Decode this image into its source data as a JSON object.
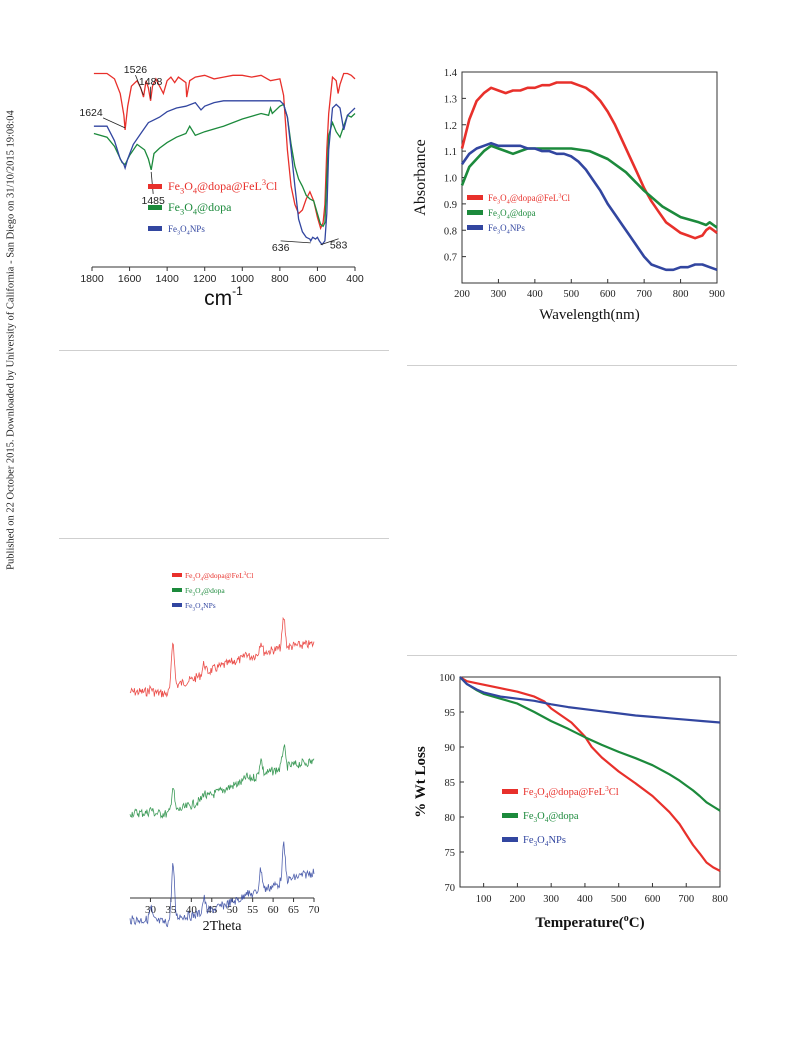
{
  "sidebar_text": "Published on 22 October 2015. Downloaded by University of California - San Diego on 31/10/2015 19:08:04",
  "legend_labels": {
    "fe3o4_dopa_fel3cl": [
      "Fe",
      "3",
      "O",
      "4",
      "@dopa@FeL",
      "3",
      "Cl"
    ],
    "fe3o4_dopa": [
      "Fe",
      "3",
      "O",
      "4",
      "@dopa"
    ],
    "fe3o4_nps": [
      "Fe",
      "3",
      "O",
      "4",
      "NPs"
    ]
  },
  "colors": {
    "red": "#e8302b",
    "green": "#1c8a3c",
    "blue": "#3246a0"
  },
  "chart_data": [
    {
      "id": "ftir",
      "type": "line",
      "xlabel": "cm-1",
      "xlabel_parts": [
        "cm",
        "-1"
      ],
      "xlim": [
        1800,
        400
      ],
      "x_reversed": true,
      "x_ticks": [
        1800,
        1600,
        1400,
        1200,
        1000,
        800,
        600,
        400
      ],
      "y_ticks": false,
      "legend_position": "center-left",
      "annotations": [
        {
          "text": "1624",
          "x": 1624,
          "series": "Fe3O4@dopa@FeL3Cl"
        },
        {
          "text": "1526",
          "x": 1526,
          "series": "Fe3O4@dopa@FeL3Cl"
        },
        {
          "text": "1488",
          "x": 1488,
          "series": "Fe3O4@dopa@FeL3Cl"
        },
        {
          "text": "1485",
          "x": 1485,
          "series": "Fe3O4@dopa"
        },
        {
          "text": "636",
          "x": 636,
          "series": "Fe3O4NPs"
        },
        {
          "text": "583",
          "x": 583,
          "series": "Fe3O4NPs"
        }
      ],
      "series": [
        {
          "name": "Fe3O4@dopa@FeL3Cl",
          "color": "#e8302b",
          "x": [
            1790,
            1720,
            1680,
            1650,
            1630,
            1624,
            1610,
            1590,
            1560,
            1540,
            1526,
            1512,
            1500,
            1488,
            1478,
            1460,
            1440,
            1420,
            1400,
            1380,
            1360,
            1340,
            1300,
            1296,
            1280,
            1250,
            1200,
            1150,
            1100,
            1050,
            1000,
            950,
            900,
            850,
            800,
            780,
            760,
            740,
            720,
            700,
            680,
            660,
            640,
            620,
            600,
            583,
            570,
            560,
            550,
            540,
            520,
            500,
            490,
            480,
            460,
            440,
            420,
            400
          ],
          "y": [
            97,
            97,
            94,
            86,
            74,
            66,
            79,
            90,
            93,
            89,
            84,
            93,
            89,
            82,
            90,
            94,
            90,
            86,
            93,
            95,
            92,
            95,
            92,
            84,
            93,
            95,
            96,
            94,
            95,
            96,
            96,
            95,
            96,
            93,
            94,
            85,
            55,
            35,
            25,
            20,
            22,
            28,
            32,
            27,
            18,
            12,
            15,
            25,
            55,
            75,
            95,
            93,
            86,
            91,
            97,
            97,
            96,
            94
          ]
        },
        {
          "name": "Fe3O4@dopa",
          "color": "#1c8a3c",
          "x": [
            1790,
            1720,
            1680,
            1640,
            1624,
            1600,
            1560,
            1520,
            1500,
            1485,
            1470,
            1440,
            1400,
            1350,
            1300,
            1280,
            1250,
            1200,
            1100,
            1000,
            900,
            860,
            850,
            840,
            800,
            780,
            760,
            740,
            720,
            700,
            680,
            660,
            640,
            620,
            600,
            583,
            570,
            560,
            550,
            540,
            520,
            500,
            480,
            460,
            440,
            420,
            400
          ],
          "y": [
            64,
            62,
            57,
            48,
            47,
            52,
            58,
            55,
            50,
            44,
            53,
            56,
            59,
            62,
            64,
            68,
            63,
            65,
            68,
            72,
            75,
            74,
            78,
            75,
            79,
            80,
            73,
            58,
            46,
            39,
            35,
            30,
            28,
            27,
            20,
            14,
            13,
            15,
            40,
            63,
            70,
            65,
            62,
            68,
            74,
            73,
            75
          ]
        },
        {
          "name": "Fe3O4NPs",
          "color": "#3246a0",
          "x": [
            1790,
            1720,
            1680,
            1650,
            1630,
            1624,
            1610,
            1580,
            1540,
            1500,
            1480,
            1440,
            1400,
            1350,
            1300,
            1250,
            1220,
            1200,
            1150,
            1100,
            1050,
            1000,
            900,
            800,
            780,
            760,
            740,
            720,
            700,
            680,
            660,
            640,
            636,
            625,
            610,
            600,
            590,
            583,
            575,
            560,
            550,
            540,
            520,
            500,
            480,
            460,
            440,
            420,
            400
          ],
          "y": [
            68,
            68,
            60,
            50,
            47,
            45,
            50,
            58,
            64,
            70,
            71,
            73,
            76,
            78,
            79,
            81,
            77,
            79,
            81,
            82,
            82,
            82,
            82,
            82,
            80,
            73,
            55,
            35,
            17,
            10,
            7,
            6,
            5,
            7,
            6,
            7,
            5,
            4,
            3,
            5,
            20,
            55,
            78,
            80,
            78,
            66,
            74,
            76,
            78
          ]
        }
      ]
    },
    {
      "id": "uvvis",
      "type": "line",
      "xlabel": "Wavelength(nm)",
      "ylabel": "Absorbance",
      "xlim": [
        200,
        900
      ],
      "ylim": [
        0.6,
        1.4
      ],
      "x_ticks": [
        200,
        300,
        400,
        500,
        600,
        700,
        800,
        900
      ],
      "y_ticks": [
        0.7,
        0.8,
        0.9,
        1.0,
        1.1,
        1.2,
        1.3,
        1.4
      ],
      "legend_position": "center-left",
      "series": [
        {
          "name": "Fe3O4@dopa@FeL3Cl",
          "color": "#e8302b",
          "x": [
            200,
            220,
            240,
            260,
            280,
            300,
            320,
            340,
            360,
            380,
            400,
            420,
            440,
            460,
            480,
            500,
            520,
            540,
            560,
            580,
            600,
            620,
            640,
            660,
            680,
            700,
            720,
            740,
            760,
            780,
            800,
            820,
            840,
            860,
            870,
            880,
            890,
            900
          ],
          "y": [
            1.11,
            1.22,
            1.29,
            1.32,
            1.34,
            1.33,
            1.32,
            1.33,
            1.33,
            1.34,
            1.34,
            1.35,
            1.35,
            1.36,
            1.36,
            1.36,
            1.35,
            1.34,
            1.32,
            1.29,
            1.25,
            1.2,
            1.14,
            1.08,
            1.02,
            0.96,
            0.91,
            0.87,
            0.83,
            0.81,
            0.79,
            0.78,
            0.77,
            0.78,
            0.8,
            0.81,
            0.8,
            0.79
          ]
        },
        {
          "name": "Fe3O4@dopa",
          "color": "#1c8a3c",
          "x": [
            200,
            220,
            240,
            260,
            280,
            300,
            320,
            340,
            360,
            380,
            400,
            450,
            500,
            550,
            600,
            650,
            700,
            750,
            800,
            850,
            870,
            880,
            890,
            900
          ],
          "y": [
            0.97,
            1.04,
            1.07,
            1.1,
            1.12,
            1.11,
            1.1,
            1.09,
            1.1,
            1.11,
            1.11,
            1.11,
            1.11,
            1.1,
            1.07,
            1.02,
            0.95,
            0.89,
            0.85,
            0.83,
            0.82,
            0.83,
            0.82,
            0.81
          ]
        },
        {
          "name": "Fe3O4NPs",
          "color": "#3246a0",
          "x": [
            200,
            220,
            240,
            260,
            280,
            300,
            320,
            340,
            360,
            380,
            400,
            420,
            440,
            460,
            480,
            500,
            520,
            540,
            560,
            580,
            600,
            620,
            640,
            660,
            680,
            700,
            720,
            740,
            760,
            780,
            800,
            820,
            840,
            860,
            880,
            900
          ],
          "y": [
            1.05,
            1.09,
            1.11,
            1.12,
            1.13,
            1.12,
            1.12,
            1.12,
            1.12,
            1.11,
            1.11,
            1.1,
            1.1,
            1.09,
            1.09,
            1.08,
            1.06,
            1.03,
            0.99,
            0.95,
            0.9,
            0.86,
            0.82,
            0.78,
            0.74,
            0.7,
            0.67,
            0.66,
            0.65,
            0.65,
            0.66,
            0.66,
            0.67,
            0.67,
            0.66,
            0.65
          ]
        }
      ]
    },
    {
      "id": "xrd",
      "type": "line",
      "xlabel": "2Theta",
      "xlim": [
        25,
        70
      ],
      "x_ticks": [
        30,
        35,
        40,
        45,
        50,
        55,
        60,
        65,
        70
      ],
      "y_ticks": false,
      "legend_position": "top-left",
      "series": [
        {
          "name": "Fe3O4@dopa@FeL3Cl",
          "color": "#e8302b",
          "peaks": [
            [
              30.1,
              4
            ],
            [
              35.5,
              48
            ],
            [
              43.1,
              10
            ],
            [
              53.4,
              5
            ],
            [
              57.0,
              12
            ],
            [
              62.6,
              30
            ]
          ],
          "baseline": [
            [
              25,
              84
            ],
            [
              30,
              84
            ],
            [
              34,
              86
            ],
            [
              37,
              76
            ],
            [
              40,
              72
            ],
            [
              45,
              62
            ],
            [
              50,
              54
            ],
            [
              55,
              48
            ],
            [
              60,
              42
            ],
            [
              65,
              38
            ],
            [
              70,
              36
            ]
          ]
        },
        {
          "name": "Fe3O4@dopa",
          "color": "#1c8a3c",
          "peaks": [
            [
              30.1,
              4
            ],
            [
              35.5,
              25
            ],
            [
              43.1,
              6
            ],
            [
              53.4,
              4
            ],
            [
              57.0,
              16
            ],
            [
              62.6,
              22
            ]
          ],
          "baseline": [
            [
              25,
              110
            ],
            [
              30,
              110
            ],
            [
              34,
              111
            ],
            [
              37,
              107
            ],
            [
              40,
              102
            ],
            [
              45,
              92
            ],
            [
              50,
              83
            ],
            [
              55,
              75
            ],
            [
              60,
              68
            ],
            [
              65,
              62
            ],
            [
              70,
              58
            ]
          ]
        },
        {
          "name": "Fe3O4NPs",
          "color": "#3246a0",
          "peaks": [
            [
              30.1,
              12
            ],
            [
              35.5,
              55
            ],
            [
              43.1,
              14
            ],
            [
              53.4,
              6
            ],
            [
              57.0,
              22
            ],
            [
              62.6,
              36
            ]
          ],
          "baseline": [
            [
              25,
              122
            ],
            [
              30,
              122
            ],
            [
              34,
              125
            ],
            [
              37,
              118
            ],
            [
              40,
              118
            ],
            [
              45,
              112
            ],
            [
              50,
              104
            ],
            [
              55,
              96
            ],
            [
              60,
              88
            ],
            [
              65,
              80
            ],
            [
              70,
              74
            ]
          ]
        }
      ]
    },
    {
      "id": "tga",
      "type": "line",
      "xlabel": "Temperature(°C)",
      "xlabel_parts": [
        "Temperature(",
        "o",
        "C)"
      ],
      "ylabel": "% Wt Loss",
      "xlim": [
        30,
        800
      ],
      "ylim": [
        70,
        100
      ],
      "x_ticks": [
        100,
        200,
        300,
        400,
        500,
        600,
        700,
        800
      ],
      "y_ticks": [
        70,
        75,
        80,
        85,
        90,
        95,
        100
      ],
      "legend_position": "center-left",
      "series": [
        {
          "name": "Fe3O4@dopa@FeL3Cl",
          "color": "#e8302b",
          "x": [
            30,
            50,
            80,
            100,
            150,
            200,
            250,
            280,
            300,
            330,
            360,
            400,
            420,
            450,
            500,
            550,
            600,
            650,
            680,
            700,
            720,
            740,
            760,
            780,
            800
          ],
          "y": [
            100,
            99.4,
            99.1,
            98.9,
            98.4,
            97.9,
            97.2,
            96.5,
            95.5,
            94.5,
            93.5,
            91.5,
            90.0,
            88.5,
            86.5,
            84.8,
            83.0,
            80.7,
            79.0,
            77.5,
            76.0,
            74.8,
            73.5,
            72.8,
            72.3
          ]
        },
        {
          "name": "Fe3O4@dopa",
          "color": "#1c8a3c",
          "x": [
            30,
            50,
            80,
            100,
            150,
            200,
            250,
            300,
            350,
            400,
            450,
            500,
            550,
            600,
            650,
            680,
            700,
            720,
            740,
            760,
            780,
            800
          ],
          "y": [
            100,
            99.0,
            98.1,
            97.6,
            96.9,
            96.2,
            95.0,
            93.7,
            92.6,
            91.4,
            90.3,
            89.3,
            88.4,
            87.4,
            86.1,
            85.2,
            84.5,
            83.8,
            83.0,
            82.1,
            81.5,
            80.9
          ]
        },
        {
          "name": "Fe3O4NPs",
          "color": "#3246a0",
          "x": [
            30,
            50,
            80,
            100,
            150,
            200,
            250,
            300,
            350,
            400,
            450,
            500,
            550,
            600,
            650,
            700,
            750,
            800
          ],
          "y": [
            100,
            99.0,
            98.2,
            97.8,
            97.2,
            96.9,
            96.6,
            96.1,
            95.7,
            95.4,
            95.1,
            94.8,
            94.5,
            94.3,
            94.1,
            93.9,
            93.7,
            93.5
          ]
        }
      ]
    }
  ]
}
